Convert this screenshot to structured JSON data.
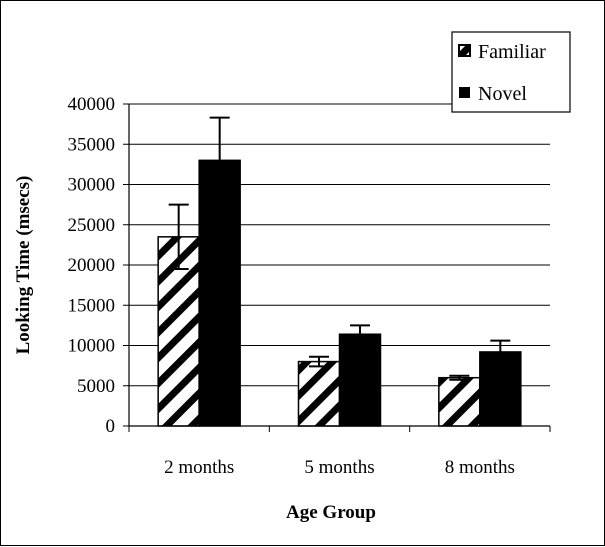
{
  "chart_data": {
    "type": "bar",
    "title": "",
    "xlabel": "Age Group",
    "ylabel": "Looking Time (msecs)",
    "categories": [
      "2 months",
      "5 months",
      "8 months"
    ],
    "ylim": [
      0,
      40000
    ],
    "yticks": [
      0,
      5000,
      10000,
      15000,
      20000,
      25000,
      30000,
      35000,
      40000
    ],
    "grid": "horizontal",
    "legend_position": "top-right",
    "series": [
      {
        "name": "Familiar",
        "pattern": "diagonal-hatch",
        "color": "#000000",
        "values": [
          23500,
          8000,
          6000
        ],
        "errors": [
          4000,
          600,
          250
        ]
      },
      {
        "name": "Novel",
        "pattern": "solid",
        "color": "#000000",
        "values": [
          33000,
          11400,
          9200
        ],
        "errors": [
          5300,
          1100,
          1400
        ]
      }
    ]
  }
}
